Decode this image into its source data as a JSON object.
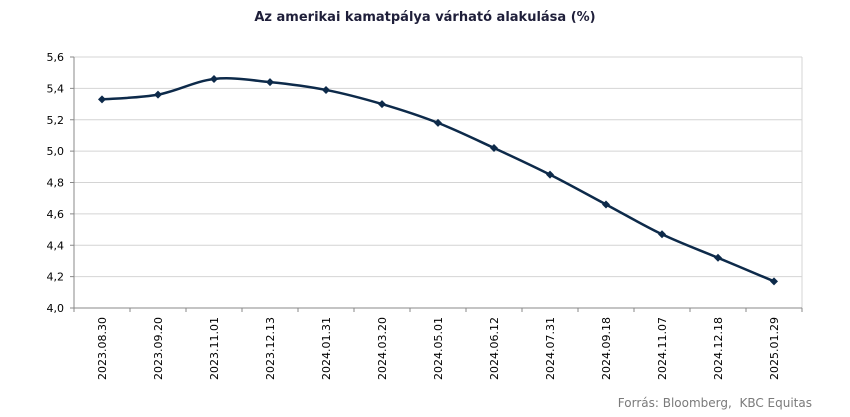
{
  "source": "Forrás: Bloomberg,  KBC Equitas",
  "colors": {
    "line": "#0d2a4a",
    "grid": "#d4d4d4",
    "axis": "#888888"
  },
  "chart_data": {
    "type": "line",
    "title": "Az amerikai kamatpálya várható alakulása (%)",
    "xlabel": "",
    "ylabel": "",
    "ylim": [
      4.0,
      5.6
    ],
    "y_ticks": [
      "4,0",
      "4,2",
      "4,4",
      "4,6",
      "4,8",
      "5,0",
      "5,2",
      "5,4",
      "5,6"
    ],
    "y_tick_values": [
      4.0,
      4.2,
      4.4,
      4.6,
      4.8,
      5.0,
      5.2,
      5.4,
      5.6
    ],
    "grid": true,
    "legend": "none",
    "categories": [
      "2023.08.30",
      "2023.09.20",
      "2023.11.01",
      "2023.12.13",
      "2024.01.31",
      "2024.03.20",
      "2024.05.01",
      "2024.06.12",
      "2024.07.31",
      "2024.09.18",
      "2024.11.07",
      "2024.12.18",
      "2025.01.29"
    ],
    "series": [
      {
        "values": [
          5.33,
          5.36,
          5.46,
          5.44,
          5.39,
          5.3,
          5.18,
          5.02,
          4.85,
          4.66,
          4.47,
          4.32,
          4.17
        ]
      }
    ]
  }
}
